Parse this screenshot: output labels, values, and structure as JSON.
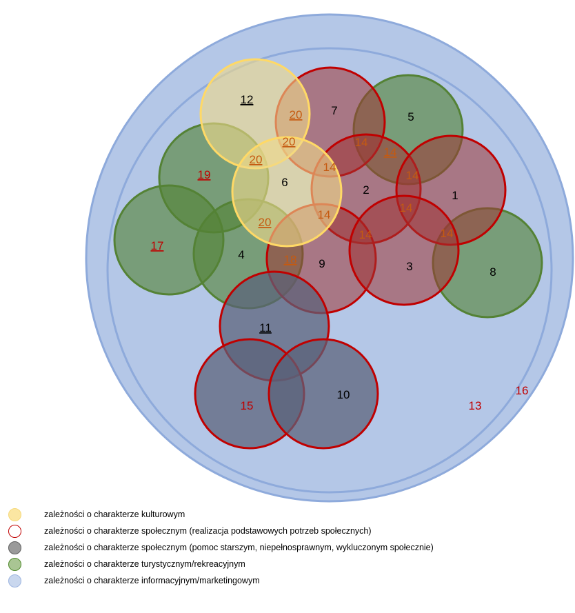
{
  "diagram": {
    "numbers": {
      "n1": "1",
      "n2": "2",
      "n3": "3",
      "n4": "4",
      "n5": "5",
      "n6": "6",
      "n7": "7",
      "n8": "8",
      "n9": "9",
      "n10": "10",
      "n11": "11",
      "n12": "12",
      "n13": "13",
      "n15": "15",
      "n16": "16",
      "n17": "17",
      "n19": "19",
      "n14": "14",
      "n18": "18",
      "n20": "20"
    }
  },
  "legend": [
    {
      "label": "zależności o charakterze kulturowym",
      "fill": "#f6e08c",
      "stroke": "#f6e08c"
    },
    {
      "label": "zależności o charakterze społecznym (realizacja podstawowych potrzeb społecznych)",
      "fill": "#ffffff",
      "stroke": "#c00000"
    },
    {
      "label": "zależności o charakterze społecznym (pomoc starszym, niepełnosprawnym, wykluczonym społecznie)",
      "fill": "#8c8c8c",
      "stroke": "#666666"
    },
    {
      "label": "zależności o charakterze turystycznym/rekreacyjnym",
      "fill": "#8fb17a",
      "stroke": "#4f8a2b"
    },
    {
      "label": "zależności o charakterze informacyjnym/marketingowym",
      "fill": "#b4c7e7",
      "stroke": "#8eaadb"
    }
  ]
}
